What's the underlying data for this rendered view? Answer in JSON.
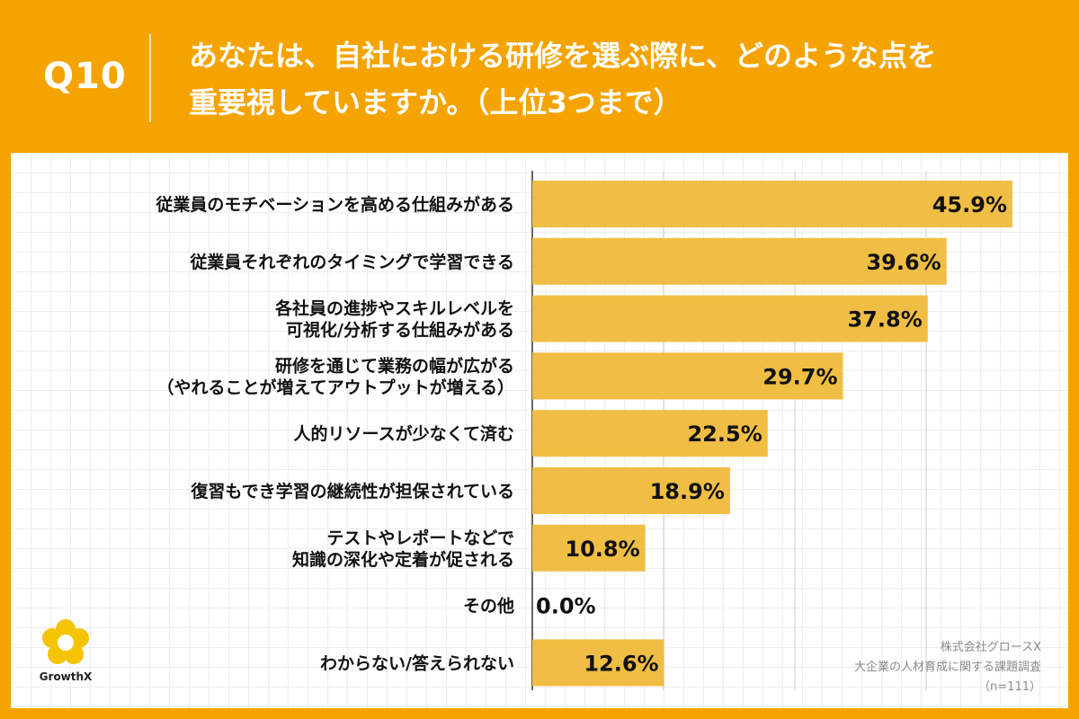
{
  "header": {
    "question_number": "Q10",
    "question_line1": "あなたは、自社における研修を選ぶ際に、どのような点を",
    "question_line2": "重要視していますか。（上位3つまで）"
  },
  "colors": {
    "background": "#f5a300",
    "bar": "#f0be45",
    "axis": "#333333"
  },
  "chart_data": {
    "type": "bar",
    "orientation": "horizontal",
    "unit": "%",
    "xlim": [
      0,
      100
    ],
    "categories": [
      [
        "従業員のモチベーションを高める仕組みがある"
      ],
      [
        "従業員それぞれのタイミングで学習できる"
      ],
      [
        "各社員の進捗やスキルレベルを",
        "可視化/分析する仕組みがある"
      ],
      [
        "研修を通じて業務の幅が広がる",
        "（やれることが増えてアウトプットが増える）"
      ],
      [
        "人的リソースが少なくて済む"
      ],
      [
        "復習もでき学習の継続性が担保されている"
      ],
      [
        "テストやレポートなどで",
        "知識の深化や定着が促される"
      ],
      [
        "その他"
      ],
      [
        "わからない/答えられない"
      ]
    ],
    "values": [
      45.9,
      39.6,
      37.8,
      29.7,
      22.5,
      18.9,
      10.8,
      0.0,
      12.6
    ],
    "value_labels": [
      "45.9%",
      "39.6%",
      "37.8%",
      "29.7%",
      "22.5%",
      "18.9%",
      "10.8%",
      "0.0%",
      "12.6%"
    ]
  },
  "logo": {
    "text": "GrowthX"
  },
  "source": {
    "line1": "株式会社グロースX",
    "line2": "大企業の人材育成に関する課題調査",
    "line3": "（n=111）"
  }
}
